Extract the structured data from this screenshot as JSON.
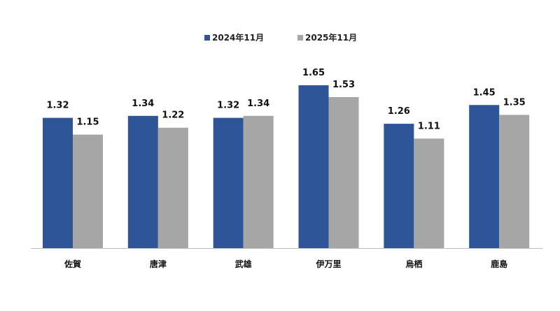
{
  "chart_data": {
    "type": "bar",
    "categories": [
      "佐賀",
      "唐津",
      "武雄",
      "伊万里",
      "烏栖",
      "鹿島"
    ],
    "series": [
      {
        "name": "2024年11月",
        "color": "#2e5597",
        "values": [
          1.32,
          1.34,
          1.32,
          1.65,
          1.26,
          1.45
        ]
      },
      {
        "name": "2025年11月",
        "color": "#a6a6a6",
        "values": [
          1.15,
          1.22,
          1.34,
          1.53,
          1.11,
          1.35
        ]
      }
    ],
    "value_labels": [
      [
        "1.32",
        "1.34",
        "1.32",
        "1.65",
        "1.26",
        "1.45"
      ],
      [
        "1.15",
        "1.22",
        "1.34",
        "1.53",
        "1.11",
        "1.35"
      ]
    ],
    "title": "",
    "xlabel": "",
    "ylabel": "",
    "ylim": [
      0,
      2.0
    ],
    "grid": false,
    "legend_position": "top-center"
  }
}
